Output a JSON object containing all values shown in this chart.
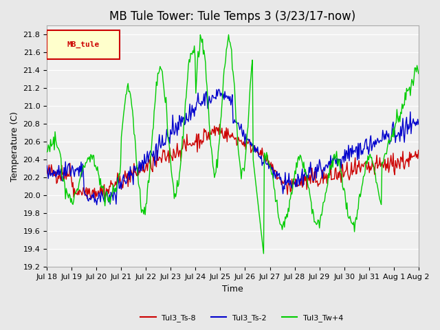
{
  "title": "MB Tule Tower: Tule Temps 3 (3/23/17-now)",
  "xlabel": "Time",
  "ylabel": "Temperature (C)",
  "ylim": [
    19.2,
    21.9
  ],
  "yticks": [
    19.2,
    19.4,
    19.6,
    19.8,
    20.0,
    20.2,
    20.4,
    20.6,
    20.8,
    21.0,
    21.2,
    21.4,
    21.6,
    21.8
  ],
  "xtick_labels": [
    "Jul 18",
    "Jul 19",
    "Jul 20",
    "Jul 21",
    "Jul 22",
    "Jul 23",
    "Jul 24",
    "Jul 25",
    "Jul 26",
    "Jul 27",
    "Jul 28",
    "Jul 29",
    "Jul 30",
    "Jul 31",
    "Aug 1",
    "Aug 2"
  ],
  "color_ts8": "#cc0000",
  "color_ts2": "#0000cc",
  "color_tw4": "#00cc00",
  "legend_label": "MB_tule",
  "legend_bg": "#ffffcc",
  "legend_border": "#cc0000",
  "series_labels": [
    "Tul3_Ts-8",
    "Tul3_Ts-2",
    "Tul3_Tw+4"
  ],
  "bg_color": "#e8e8e8",
  "plot_bg": "#f0f0f0",
  "title_fontsize": 12,
  "axis_fontsize": 9,
  "tick_fontsize": 8,
  "n_points": 500
}
